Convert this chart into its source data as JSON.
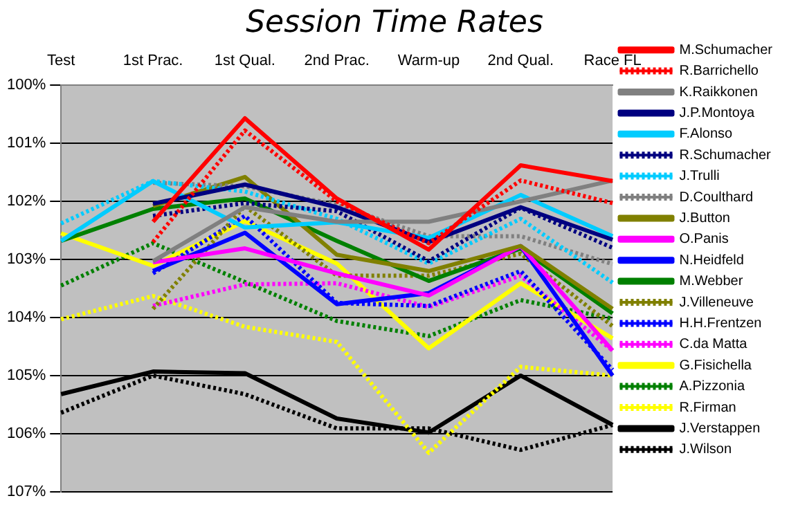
{
  "chart_data": {
    "type": "line",
    "title": "Session Time Rates",
    "categories": [
      "Test",
      "1st Prac.",
      "1st Qual.",
      "2nd Prac.",
      "Warm-up",
      "2nd Qual.",
      "Race FL"
    ],
    "ylim": [
      107,
      100
    ],
    "yticks": [
      {
        "value": 100,
        "label": "100%"
      },
      {
        "value": 101,
        "label": "101%"
      },
      {
        "value": 102,
        "label": "102%"
      },
      {
        "value": 103,
        "label": "103%"
      },
      {
        "value": 104,
        "label": "104%"
      },
      {
        "value": 105,
        "label": "105%"
      },
      {
        "value": 106,
        "label": "106%"
      },
      {
        "value": 107,
        "label": "107%"
      }
    ],
    "grid": "y",
    "legend": "right",
    "marker": "none",
    "series": [
      {
        "name": "M.Schumacher",
        "color": "#ff0000",
        "line_style": "solid",
        "values": [
          null,
          102.35,
          100.57,
          101.95,
          102.83,
          101.38,
          101.65
        ]
      },
      {
        "name": "R.Barrichello",
        "color": "#ff0000",
        "line_style": "dotted",
        "values": [
          null,
          102.7,
          100.78,
          102.0,
          102.72,
          101.64,
          102.03
        ]
      },
      {
        "name": "K.Raikkonen",
        "color": "#808080",
        "line_style": "solid",
        "values": [
          null,
          103.03,
          102.1,
          102.35,
          102.35,
          102.0,
          101.64
        ]
      },
      {
        "name": "J.P.Montoya",
        "color": "#000080",
        "line_style": "solid",
        "values": [
          null,
          102.04,
          101.71,
          102.1,
          102.7,
          102.1,
          102.66
        ]
      },
      {
        "name": "F.Alonso",
        "color": "#00ccff",
        "line_style": "solid",
        "values": [
          102.68,
          101.65,
          102.45,
          102.36,
          102.63,
          101.89,
          102.6
        ]
      },
      {
        "name": "R.Schumacher",
        "color": "#000080",
        "line_style": "dotted",
        "values": [
          null,
          102.25,
          102.03,
          102.17,
          103.03,
          102.11,
          102.8
        ]
      },
      {
        "name": "J.Trulli",
        "color": "#00ccff",
        "line_style": "dotted",
        "values": [
          102.38,
          101.65,
          101.83,
          102.3,
          103.07,
          102.3,
          103.4
        ]
      },
      {
        "name": "D.Coulthard",
        "color": "#808080",
        "line_style": "dotted",
        "values": [
          null,
          101.68,
          101.74,
          102.06,
          102.6,
          102.6,
          103.08
        ]
      },
      {
        "name": "J.Button",
        "color": "#808000",
        "line_style": "solid",
        "values": [
          null,
          102.08,
          101.58,
          102.92,
          103.2,
          102.77,
          103.85
        ]
      },
      {
        "name": "O.Panis",
        "color": "#ff00ff",
        "line_style": "solid",
        "values": [
          null,
          103.05,
          102.81,
          103.24,
          103.62,
          102.77,
          104.57
        ]
      },
      {
        "name": "N.Heidfeld",
        "color": "#0000ff",
        "line_style": "solid",
        "values": [
          null,
          103.2,
          102.54,
          103.77,
          103.58,
          102.77,
          105.0
        ]
      },
      {
        "name": "M.Webber",
        "color": "#008000",
        "line_style": "solid",
        "values": [
          102.68,
          102.13,
          101.95,
          102.68,
          103.37,
          102.81,
          103.93
        ]
      },
      {
        "name": "J.Villeneuve",
        "color": "#808000",
        "line_style": "dotted",
        "values": [
          null,
          103.85,
          102.08,
          103.28,
          103.28,
          102.9,
          104.15
        ]
      },
      {
        "name": "H.H.Frentzen",
        "color": "#0000ff",
        "line_style": "dotted",
        "values": [
          null,
          103.24,
          102.25,
          103.75,
          103.8,
          103.2,
          104.9
        ]
      },
      {
        "name": "C.da Matta",
        "color": "#ff00ff",
        "line_style": "dotted",
        "values": [
          null,
          103.8,
          103.43,
          103.41,
          103.82,
          103.28,
          104.57
        ]
      },
      {
        "name": "G.Fisichella",
        "color": "#ffff00",
        "line_style": "solid",
        "values": [
          102.55,
          103.11,
          102.34,
          103.07,
          104.53,
          103.41,
          104.36
        ]
      },
      {
        "name": "A.Pizzonia",
        "color": "#008000",
        "line_style": "dotted",
        "values": [
          103.45,
          102.72,
          103.39,
          104.06,
          104.32,
          103.7,
          104.02
        ]
      },
      {
        "name": "R.Firman",
        "color": "#ffff00",
        "line_style": "dotted",
        "values": [
          104.03,
          103.63,
          104.16,
          104.42,
          106.33,
          104.85,
          105.0
        ]
      },
      {
        "name": "J.Verstappen",
        "color": "#000000",
        "line_style": "solid",
        "values": [
          105.32,
          104.93,
          104.96,
          105.74,
          105.98,
          105.0,
          105.85
        ]
      },
      {
        "name": "J.Wilson",
        "color": "#000000",
        "line_style": "dotted",
        "values": [
          105.64,
          105.0,
          105.32,
          105.91,
          105.91,
          106.28,
          105.85
        ]
      }
    ]
  }
}
